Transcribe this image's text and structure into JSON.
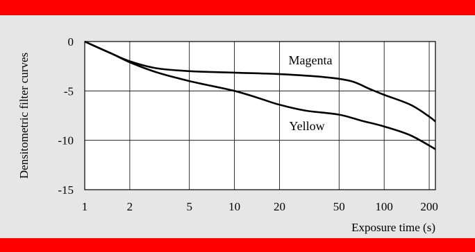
{
  "colors": {
    "frame": "#ff0000",
    "background": "#e6e6e6",
    "plot_background": "#ffffff",
    "line": "#000000"
  },
  "chart_data": {
    "type": "line",
    "title": "",
    "xlabel": "Exposure time (s)",
    "ylabel": "Densitometric filter curves",
    "x_scale": "log",
    "xlim": [
      1,
      220
    ],
    "ylim": [
      -15,
      0
    ],
    "x_ticks": [
      1,
      2,
      5,
      10,
      20,
      50,
      100,
      200
    ],
    "x_tick_labels": [
      "1",
      "2",
      "5",
      "10",
      "20",
      "50",
      "100",
      "200"
    ],
    "y_ticks": [
      0,
      -5,
      -10,
      -15
    ],
    "y_tick_labels": [
      "0",
      "-5",
      "-10",
      "-15"
    ],
    "grid": true,
    "legend": "none (series labelled directly on the curves)",
    "series": [
      {
        "name": "Magenta",
        "points": [
          [
            1,
            0
          ],
          [
            1.5,
            -1.2
          ],
          [
            2,
            -2.0
          ],
          [
            3,
            -2.7
          ],
          [
            5,
            -3.0
          ],
          [
            10,
            -3.15
          ],
          [
            20,
            -3.3
          ],
          [
            40,
            -3.6
          ],
          [
            60,
            -4.0
          ],
          [
            80,
            -4.8
          ],
          [
            100,
            -5.4
          ],
          [
            150,
            -6.4
          ],
          [
            200,
            -7.6
          ],
          [
            220,
            -8.1
          ]
        ]
      },
      {
        "name": "Yellow",
        "points": [
          [
            1,
            0
          ],
          [
            1.5,
            -1.2
          ],
          [
            2,
            -2.1
          ],
          [
            3,
            -3.1
          ],
          [
            5,
            -4.0
          ],
          [
            10,
            -5.0
          ],
          [
            15,
            -5.8
          ],
          [
            20,
            -6.4
          ],
          [
            30,
            -7.0
          ],
          [
            50,
            -7.4
          ],
          [
            70,
            -8.0
          ],
          [
            100,
            -8.6
          ],
          [
            150,
            -9.5
          ],
          [
            220,
            -10.9
          ]
        ]
      }
    ]
  }
}
